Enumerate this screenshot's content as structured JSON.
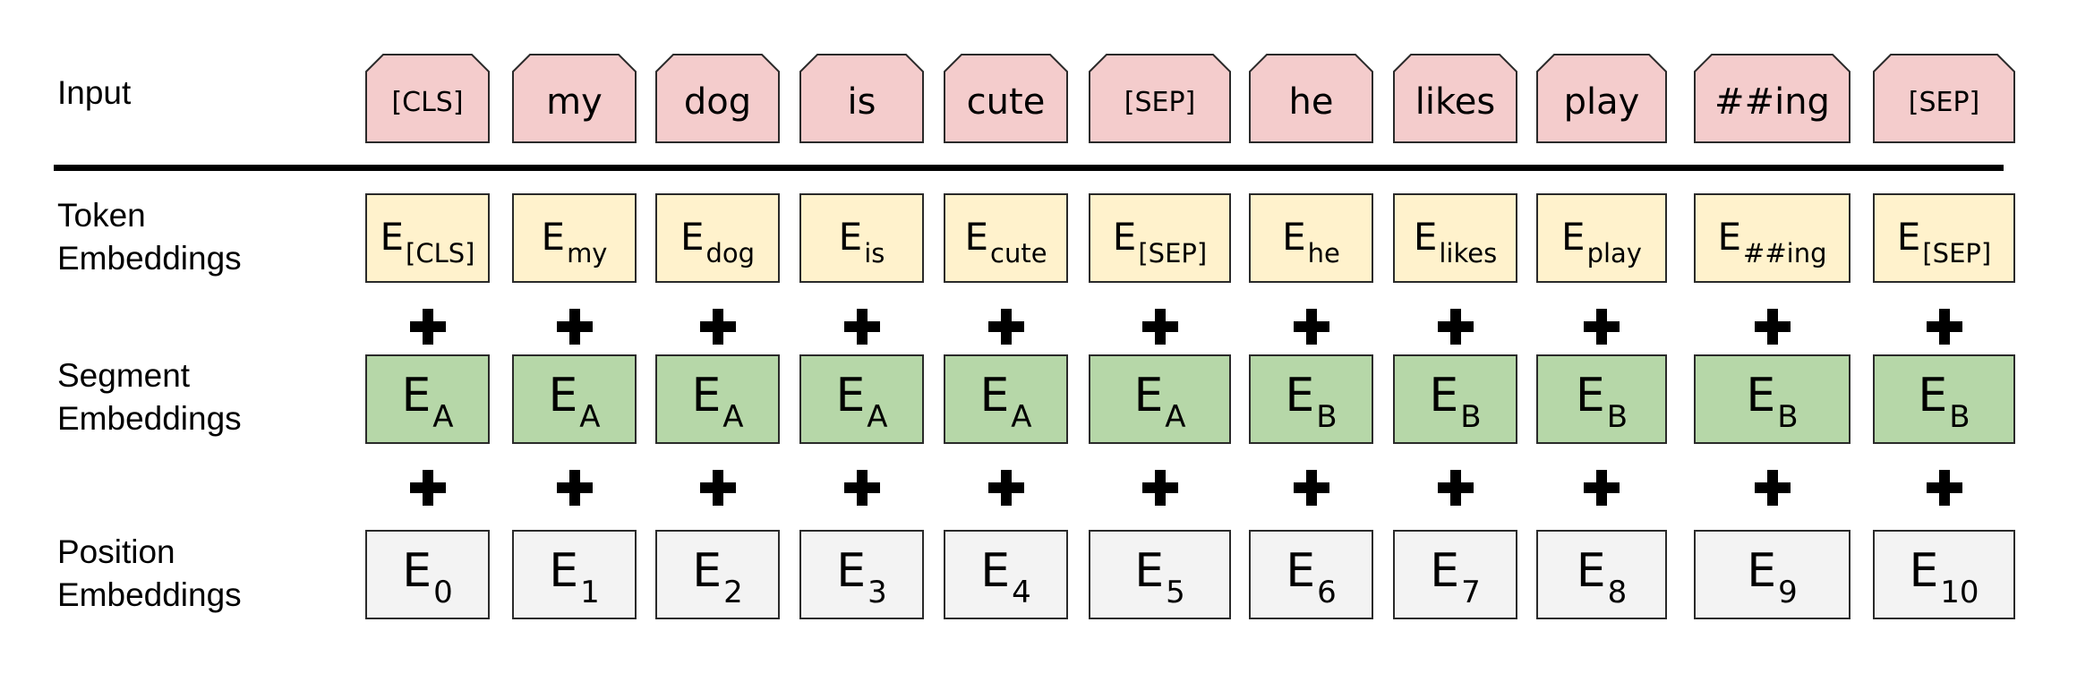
{
  "labels": {
    "input": "Input",
    "token": [
      "Token",
      "Embeddings"
    ],
    "segment": [
      "Segment",
      "Embeddings"
    ],
    "position": [
      "Position",
      "Embeddings"
    ]
  },
  "embedding_prefix": "E",
  "tokens": [
    {
      "input": "[CLS]",
      "token_sub": "[CLS]",
      "segment": "A",
      "position": "0"
    },
    {
      "input": "my",
      "token_sub": "my",
      "segment": "A",
      "position": "1"
    },
    {
      "input": "dog",
      "token_sub": "dog",
      "segment": "A",
      "position": "2"
    },
    {
      "input": "is",
      "token_sub": "is",
      "segment": "A",
      "position": "3"
    },
    {
      "input": "cute",
      "token_sub": "cute",
      "segment": "A",
      "position": "4"
    },
    {
      "input": "[SEP]",
      "token_sub": "[SEP]",
      "segment": "A",
      "position": "5"
    },
    {
      "input": "he",
      "token_sub": "he",
      "segment": "B",
      "position": "6"
    },
    {
      "input": "likes",
      "token_sub": "likes",
      "segment": "B",
      "position": "7"
    },
    {
      "input": "play",
      "token_sub": "play",
      "segment": "B",
      "position": "8"
    },
    {
      "input": "##ing",
      "token_sub": "##ing",
      "segment": "B",
      "position": "9"
    },
    {
      "input": "[SEP]",
      "token_sub": "[SEP]",
      "segment": "B",
      "position": "10"
    }
  ],
  "colors": {
    "input_fill": "#f4cccc",
    "token_fill": "#fff2cc",
    "segment_fill": "#b6d7a8",
    "position_fill": "#f3f3f3",
    "border": "#2a2a2a"
  }
}
